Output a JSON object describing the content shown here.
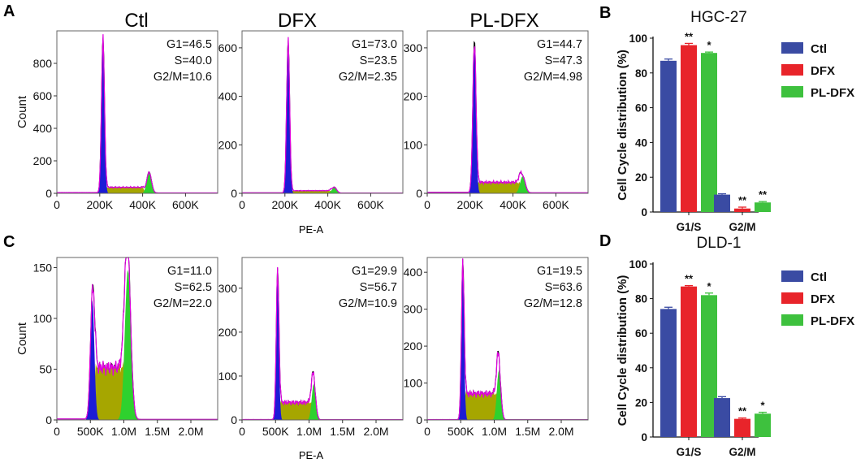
{
  "figure": {
    "panel_labels": [
      "A",
      "B",
      "C",
      "D"
    ],
    "histogram_x_label": "PE-A",
    "histogram_y_label": "Count",
    "column_titles": [
      "Ctl",
      "DFX",
      "PL-DFX"
    ]
  },
  "colors": {
    "ctl": "#3a4ba3",
    "dfx": "#e8242a",
    "pl_dfx": "#3ec13e",
    "g1_fill": "#1c1cd6",
    "s_fill": "#a6a600",
    "g2_fill": "#2ed12e",
    "fit_line": "#e000e0",
    "raw_line": "#000000"
  },
  "chart_data": [
    {
      "id": "hist_A_ctl",
      "type": "area",
      "panel": "A",
      "title": "Ctl",
      "xlabel": "",
      "ylabel": "Count",
      "xlim": [
        0,
        750000
      ],
      "ylim": [
        0,
        1000
      ],
      "yticks": [
        0,
        200,
        400,
        600,
        800
      ],
      "ytick_labels": [
        "0",
        "200",
        "400",
        "600",
        "800"
      ],
      "xticks": [
        0,
        200000,
        400000,
        600000
      ],
      "xtick_labels": [
        "0",
        "200K",
        "400K",
        "600K"
      ],
      "stats": [
        "G1=46.5",
        "S=40.0",
        "G2/M=10.6"
      ],
      "peaks": {
        "baseline": 5,
        "g1_pos": 215000,
        "g1_height": 950,
        "g1_width": 7000,
        "g2_pos": 430000,
        "g2_height": 130,
        "g2_width": 11000,
        "s_level": 35,
        "s_end": 400000
      }
    },
    {
      "id": "hist_A_dfx",
      "type": "area",
      "panel": "A",
      "title": "DFX",
      "xlabel": "",
      "ylabel": "",
      "xlim": [
        0,
        750000
      ],
      "ylim": [
        0,
        670
      ],
      "yticks": [
        0,
        200,
        400,
        600
      ],
      "ytick_labels": [
        "0",
        "200",
        "400",
        "600"
      ],
      "xticks": [
        0,
        200000,
        400000,
        600000
      ],
      "xtick_labels": [
        "0",
        "200K",
        "400K",
        "600K"
      ],
      "stats": [
        "G1=73.0",
        "S=23.5",
        "G2/M=2.35"
      ],
      "peaks": {
        "baseline": 2,
        "g1_pos": 215000,
        "g1_height": 630,
        "g1_width": 7000,
        "g2_pos": 430000,
        "g2_height": 25,
        "g2_width": 11000,
        "s_level": 10,
        "s_end": 410000
      }
    },
    {
      "id": "hist_A_pldfx",
      "type": "area",
      "panel": "A",
      "title": "PL-DFX",
      "xlabel": "",
      "ylabel": "",
      "xlim": [
        0,
        750000
      ],
      "ylim": [
        0,
        335
      ],
      "yticks": [
        0,
        100,
        200,
        300
      ],
      "ytick_labels": [
        "0",
        "100",
        "200",
        "300"
      ],
      "xticks": [
        0,
        200000,
        400000,
        600000
      ],
      "xtick_labels": [
        "0",
        "200K",
        "400K",
        "600K"
      ],
      "stats": [
        "G1=44.7",
        "S=47.3",
        "G2/M=4.98"
      ],
      "peaks": {
        "baseline": 2,
        "g1_pos": 220000,
        "g1_height": 310,
        "g1_width": 7500,
        "g2_pos": 445000,
        "g2_height": 35,
        "g2_width": 12000,
        "s_level": 22,
        "s_end": 430000
      }
    },
    {
      "id": "hist_C_ctl",
      "type": "area",
      "panel": "C",
      "title": "",
      "xlabel": "",
      "ylabel": "Count",
      "xlim": [
        0,
        2400000
      ],
      "ylim": [
        0,
        160
      ],
      "yticks": [
        0,
        50,
        100,
        150
      ],
      "ytick_labels": [
        "0",
        "50",
        "100",
        "150"
      ],
      "xticks": [
        0,
        500000,
        1000000,
        1500000,
        2000000
      ],
      "xtick_labels": [
        "0",
        "500K",
        "1.0M",
        "1.5M",
        "2.0M"
      ],
      "stats": [
        "G1=11.0",
        "S=62.5",
        "G2/M=22.0"
      ],
      "peaks": {
        "baseline": 1,
        "g1_pos": 530000,
        "g1_height": 118,
        "g1_width": 30000,
        "g2_pos": 1060000,
        "g2_height": 148,
        "g2_width": 45000,
        "s_level": 52,
        "s_end": 1040000
      }
    },
    {
      "id": "hist_C_dfx",
      "type": "area",
      "panel": "C",
      "title": "",
      "xlabel": "",
      "ylabel": "",
      "xlim": [
        0,
        2400000
      ],
      "ylim": [
        0,
        370
      ],
      "yticks": [
        0,
        100,
        200,
        300
      ],
      "ytick_labels": [
        "0",
        "100",
        "200",
        "300"
      ],
      "xticks": [
        0,
        500000,
        1000000,
        1500000,
        2000000
      ],
      "xtick_labels": [
        "0",
        "500K",
        "1.0M",
        "1.5M",
        "2.0M"
      ],
      "stats": [
        "G1=29.9",
        "S=56.7",
        "G2/M=10.9"
      ],
      "peaks": {
        "baseline": 1,
        "g1_pos": 530000,
        "g1_height": 335,
        "g1_width": 20000,
        "g2_pos": 1070000,
        "g2_height": 82,
        "g2_width": 30000,
        "s_level": 40,
        "s_end": 1050000
      }
    },
    {
      "id": "hist_C_pldfx",
      "type": "area",
      "panel": "C",
      "title": "",
      "xlabel": "",
      "ylabel": "",
      "xlim": [
        0,
        2400000
      ],
      "ylim": [
        0,
        440
      ],
      "yticks": [
        0,
        100,
        200,
        300,
        400
      ],
      "ytick_labels": [
        "0",
        "100",
        "200",
        "300",
        "400"
      ],
      "xticks": [
        0,
        500000,
        1000000,
        1500000,
        2000000
      ],
      "xtick_labels": [
        "0",
        "500K",
        "1.0M",
        "1.5M",
        "2.0M"
      ],
      "stats": [
        "G1=19.5",
        "S=63.6",
        "G2/M=12.8"
      ],
      "peaks": {
        "baseline": 1,
        "g1_pos": 530000,
        "g1_height": 415,
        "g1_width": 20000,
        "g2_pos": 1070000,
        "g2_height": 135,
        "g2_width": 30000,
        "s_level": 72,
        "s_end": 1050000
      }
    },
    {
      "id": "bar_B",
      "type": "bar",
      "panel": "B",
      "title": "HGC-27",
      "xlabel": "",
      "ylabel": "Cell Cycle distribution (%)",
      "ylim": [
        0,
        100
      ],
      "yticks": [
        0,
        20,
        40,
        60,
        80,
        100
      ],
      "ytick_labels": [
        "0",
        "20",
        "40",
        "60",
        "80",
        "100"
      ],
      "categories": [
        "G1/S",
        "G2/M"
      ],
      "series": [
        {
          "name": "Ctl",
          "values": [
            87,
            10
          ],
          "errors": [
            1,
            0.5
          ],
          "sig": [
            "",
            ""
          ]
        },
        {
          "name": "DFX",
          "values": [
            96,
            2
          ],
          "errors": [
            1,
            0.8
          ],
          "sig": [
            "**",
            "**"
          ]
        },
        {
          "name": "PL-DFX",
          "values": [
            91.5,
            5.5
          ],
          "errors": [
            0.5,
            0.5
          ],
          "sig": [
            "*",
            "**"
          ]
        }
      ]
    },
    {
      "id": "bar_D",
      "type": "bar",
      "panel": "D",
      "title": "DLD-1",
      "xlabel": "",
      "ylabel": "Cell Cycle distribution (%)",
      "ylim": [
        0,
        100
      ],
      "yticks": [
        0,
        20,
        40,
        60,
        80,
        100
      ],
      "ytick_labels": [
        "0",
        "20",
        "40",
        "60",
        "80",
        "100"
      ],
      "categories": [
        "G1/S",
        "G2/M"
      ],
      "series": [
        {
          "name": "Ctl",
          "values": [
            74,
            22.5
          ],
          "errors": [
            1,
            0.8
          ],
          "sig": [
            "",
            ""
          ]
        },
        {
          "name": "DFX",
          "values": [
            87,
            10.5
          ],
          "errors": [
            0.5,
            0.5
          ],
          "sig": [
            "**",
            "**"
          ]
        },
        {
          "name": "PL-DFX",
          "values": [
            82,
            13.5
          ],
          "errors": [
            1.2,
            0.8
          ],
          "sig": [
            "*",
            "*"
          ]
        }
      ]
    }
  ]
}
